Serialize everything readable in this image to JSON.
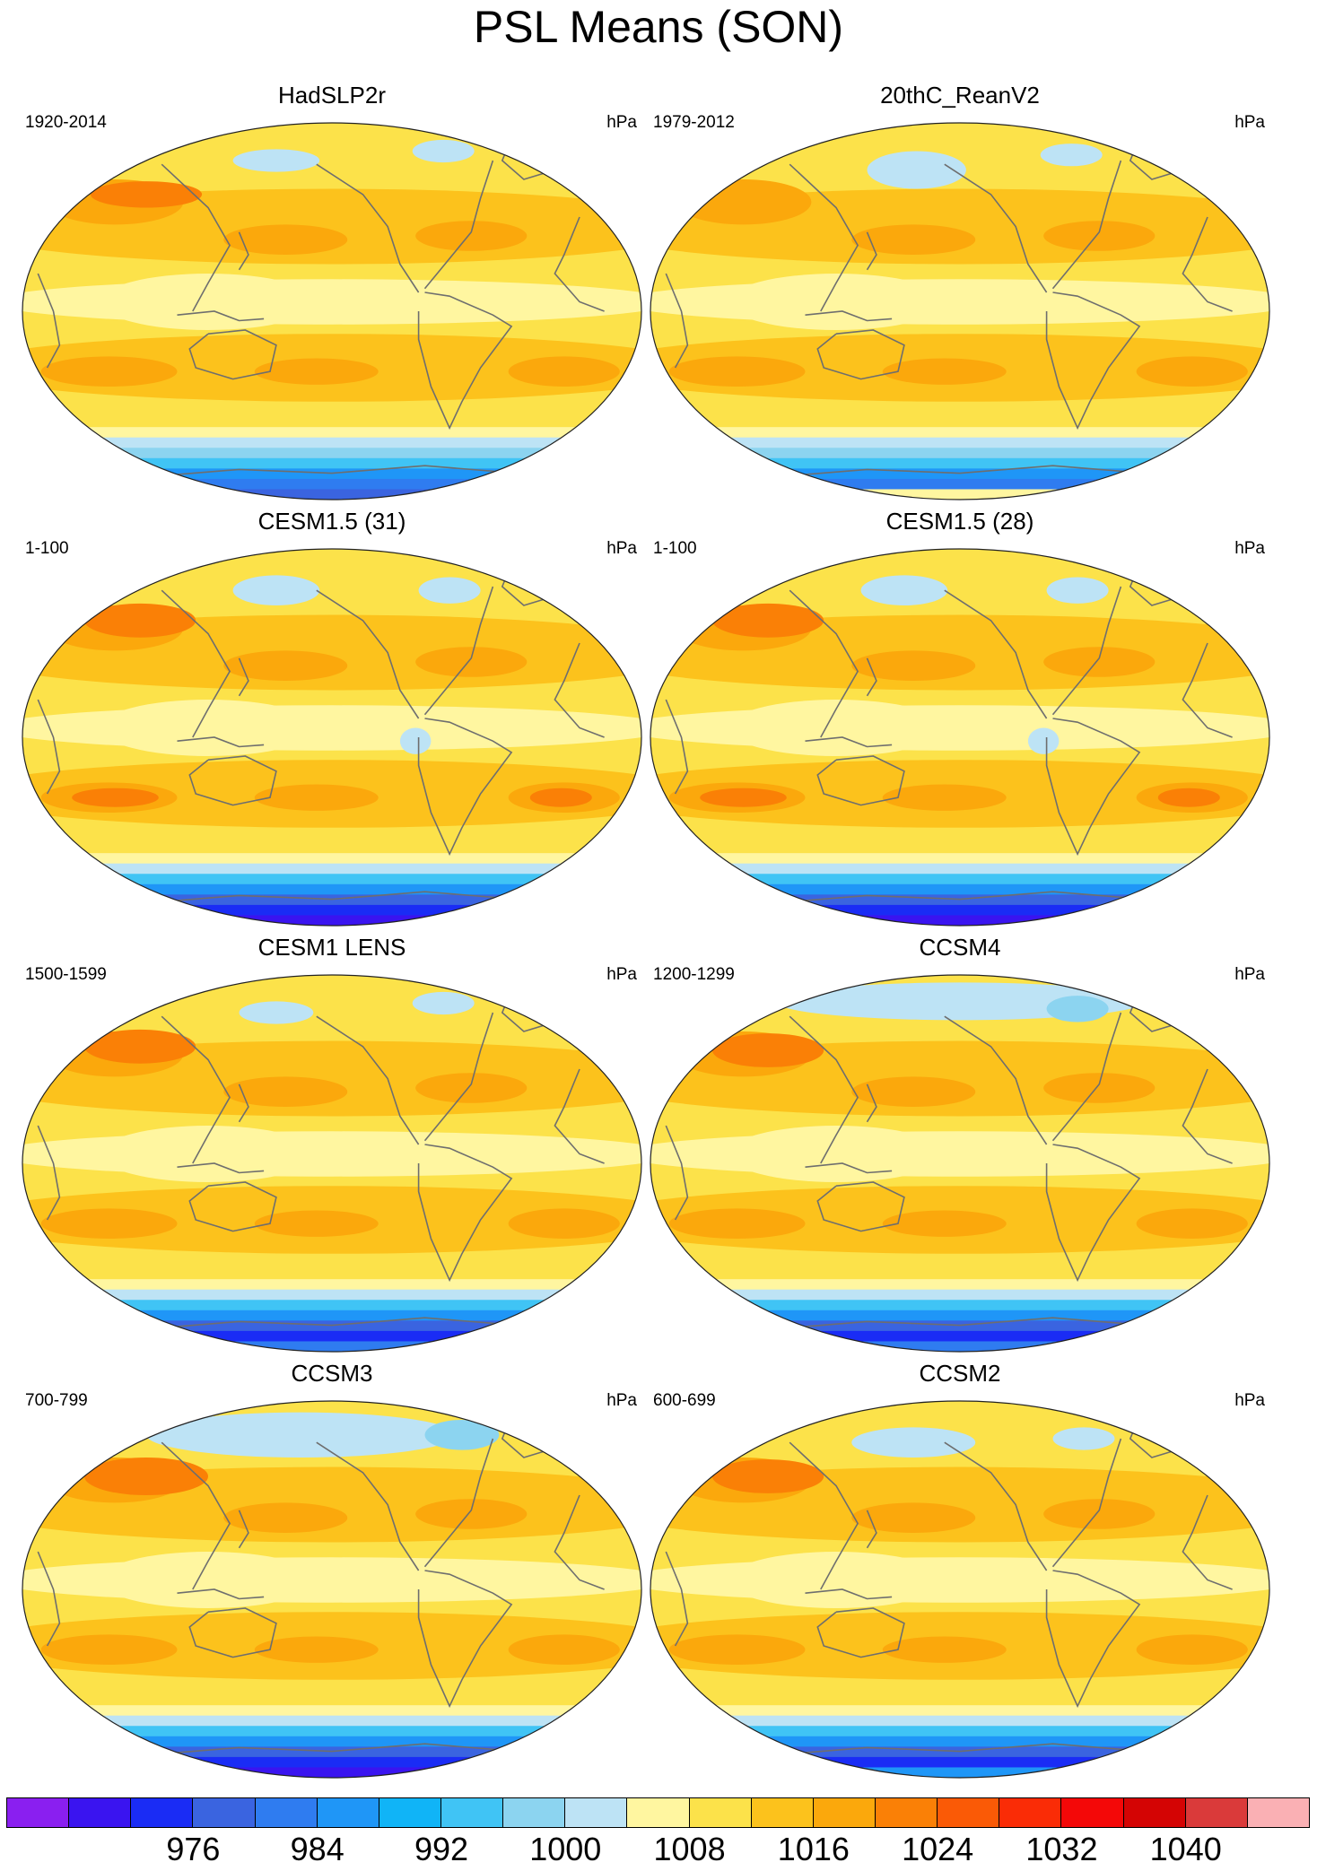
{
  "figure": {
    "title": "PSL Means (SON)"
  },
  "panels": [
    {
      "title": "HadSLP2r",
      "period": "1920-2014",
      "units": "hPa",
      "variant": "obs"
    },
    {
      "title": "20thC_ReanV2",
      "period": "1979-2012",
      "units": "hPa",
      "variant": "rean"
    },
    {
      "title": "CESM1.5 (31)",
      "period": "1-100",
      "units": "hPa",
      "variant": "cesm15"
    },
    {
      "title": "CESM1.5 (28)",
      "period": "1-100",
      "units": "hPa",
      "variant": "cesm15"
    },
    {
      "title": "CESM1 LENS",
      "period": "1500-1599",
      "units": "hPa",
      "variant": "lens"
    },
    {
      "title": "CCSM4",
      "period": "1200-1299",
      "units": "hPa",
      "variant": "ccsm4"
    },
    {
      "title": "CCSM3",
      "period": "700-799",
      "units": "hPa",
      "variant": "ccsm3"
    },
    {
      "title": "CCSM2",
      "period": "600-699",
      "units": "hPa",
      "variant": "ccsm2"
    }
  ],
  "colorbar": {
    "colors": [
      "#8a1ff0",
      "#3a14f0",
      "#1a2cf5",
      "#3a64e0",
      "#2f7cf0",
      "#1f96f7",
      "#10b4f7",
      "#40c4f5",
      "#8cd4f0",
      "#bde3f5",
      "#fff6a0",
      "#fce24a",
      "#fcc21c",
      "#fba80c",
      "#fa8006",
      "#fa5a06",
      "#fa2c06",
      "#f40808",
      "#d40404",
      "#da3a3a",
      "#fab0b4"
    ],
    "labels": [
      "976",
      "984",
      "992",
      "1000",
      "1008",
      "1016",
      "1024",
      "1032",
      "1040"
    ],
    "label_after_box_index": [
      2,
      4,
      6,
      8,
      10,
      12,
      14,
      16,
      18
    ]
  }
}
